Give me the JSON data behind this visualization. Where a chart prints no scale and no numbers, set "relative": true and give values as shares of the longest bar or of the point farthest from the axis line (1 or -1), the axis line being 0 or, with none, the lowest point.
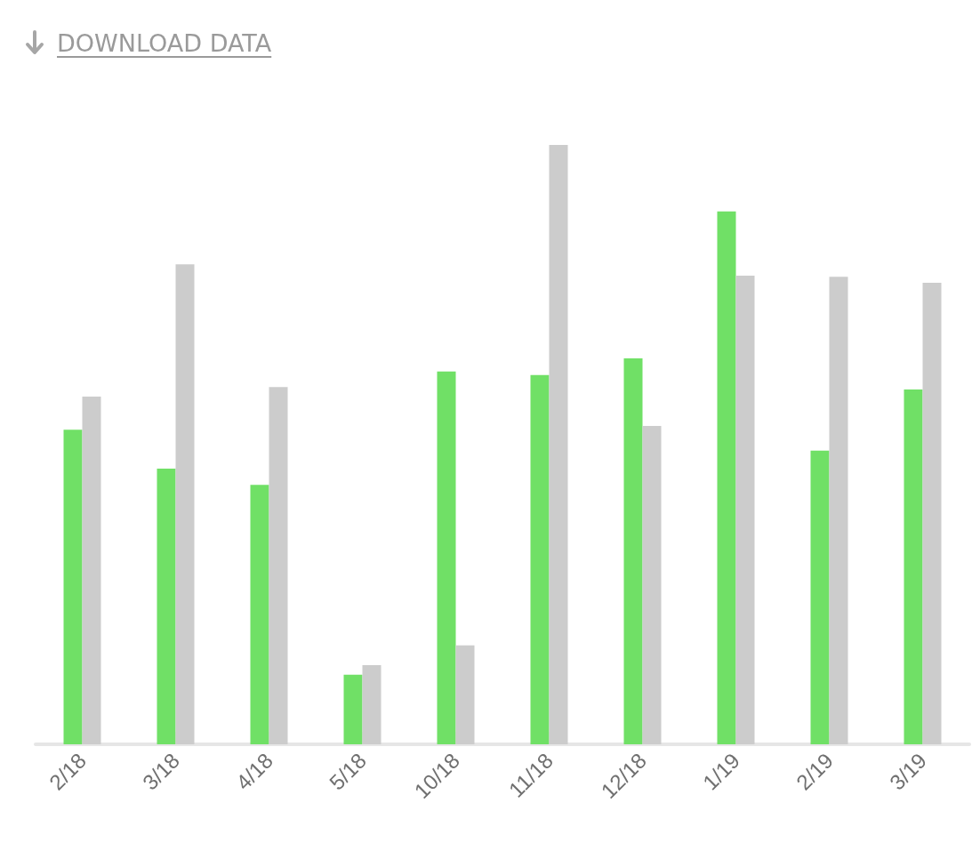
{
  "chart_data": {
    "type": "bar",
    "relative": true,
    "annotations": [
      "DOWNLOAD DATA"
    ],
    "categories": [
      "2/18",
      "3/18",
      "4/18",
      "5/18",
      "10/18",
      "11/18",
      "12/18",
      "1/19",
      "2/19",
      "3/19"
    ],
    "series": [
      {
        "color": "#70e066",
        "values": [
          0.525,
          0.46,
          0.433,
          0.116,
          0.622,
          0.616,
          0.644,
          0.889,
          0.49,
          0.592
        ]
      },
      {
        "color": "#cccccc",
        "values": [
          0.58,
          0.801,
          0.596,
          0.132,
          0.165,
          1,
          0.531,
          0.782,
          0.78,
          0.77
        ]
      }
    ]
  }
}
